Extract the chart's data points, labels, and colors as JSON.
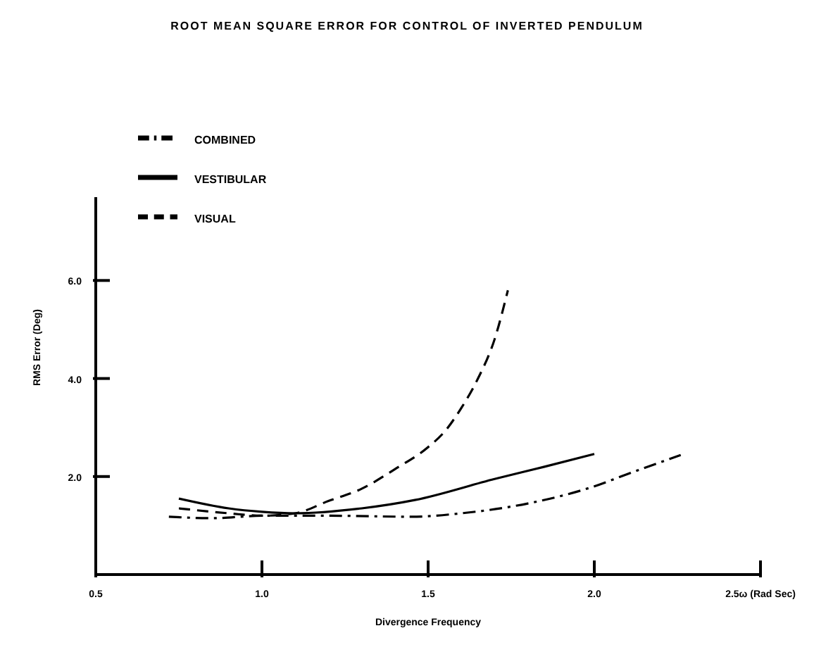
{
  "chart_data": {
    "type": "line",
    "title": "ROOT MEAN SQUARE ERROR FOR CONTROL OF INVERTED PENDULUM",
    "xlabel": "Divergence Frequency",
    "ylabel": "RMS Error (Deg)",
    "xlim": [
      0.5,
      2.5
    ],
    "xticks": [
      {
        "value": 0.5,
        "label": "0.5"
      },
      {
        "value": 1.0,
        "label": "1.0"
      },
      {
        "value": 1.5,
        "label": "1.5"
      },
      {
        "value": 2.0,
        "label": "2.0"
      },
      {
        "value": 2.5,
        "label": "2.5ω (Rad Sec)"
      }
    ],
    "ylim": [
      0,
      7.7
    ],
    "yticks": [
      {
        "value": 2,
        "label": "2.0"
      },
      {
        "value": 4,
        "label": "4.0"
      },
      {
        "value": 6,
        "label": "6.0"
      }
    ],
    "grid": false,
    "legend": "top left",
    "marker": "none",
    "series": [
      {
        "name": "VISUAL",
        "color": "#000000",
        "line_style": "dashed",
        "x": [
          0.75,
          0.9,
          1.0,
          1.1,
          1.2,
          1.3,
          1.4,
          1.5,
          1.55,
          1.6,
          1.65,
          1.7,
          1.74
        ],
        "values": [
          1.35,
          1.25,
          1.2,
          1.25,
          1.5,
          1.75,
          2.15,
          2.6,
          2.92,
          3.4,
          4.0,
          4.8,
          5.8
        ]
      },
      {
        "name": "VESTIBULAR",
        "color": "#000000",
        "line_style": "solid",
        "x": [
          0.75,
          0.9,
          1.0,
          1.1,
          1.3,
          1.46,
          1.7,
          1.85,
          2.0
        ],
        "values": [
          1.55,
          1.35,
          1.28,
          1.25,
          1.35,
          1.52,
          1.95,
          2.2,
          2.46
        ]
      },
      {
        "name": "COMBINED",
        "color": "#000000",
        "line_style": "dashdot",
        "x": [
          0.72,
          0.85,
          1.0,
          1.2,
          1.45,
          1.6,
          1.8,
          2.0,
          2.1,
          2.26
        ],
        "values": [
          1.18,
          1.15,
          1.2,
          1.2,
          1.18,
          1.25,
          1.45,
          1.8,
          2.05,
          2.44
        ]
      }
    ]
  }
}
